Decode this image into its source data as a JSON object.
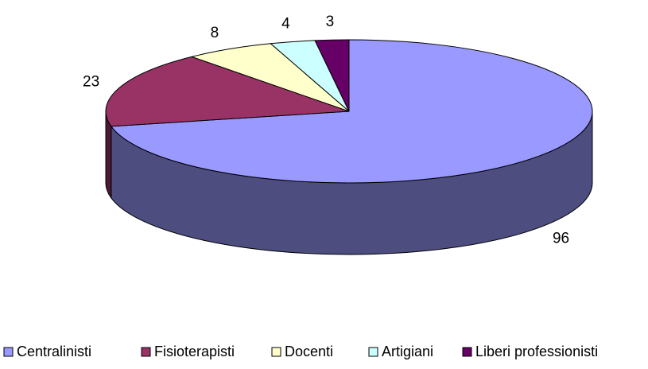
{
  "chart_data": {
    "type": "pie",
    "categories": [
      "Centralinisti",
      "Fisioterapisti",
      "Docenti",
      "Artigiani",
      "Liberi professionisti"
    ],
    "values": [
      96,
      23,
      8,
      4,
      3
    ],
    "colors": [
      "#9999ff",
      "#993366",
      "#ffffcc",
      "#ccffff",
      "#660066"
    ],
    "legend": "bottom"
  }
}
